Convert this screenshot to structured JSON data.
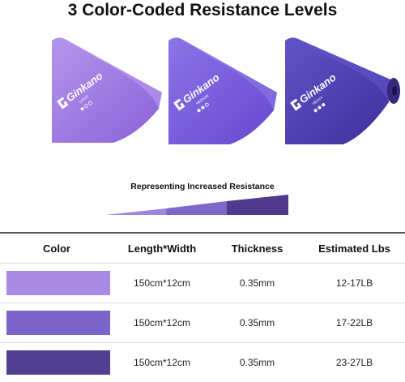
{
  "title": "3 Color-Coded Resistance Levels",
  "subtitle": "Representing Increased Resistance",
  "brand": "Ginkano",
  "bands": [
    {
      "level": "LIGHT",
      "color": "#9b6fe0"
    },
    {
      "level": "MEDIUM",
      "color": "#7658dc"
    },
    {
      "level": "HEAVY",
      "color": "#4a3cb0"
    }
  ],
  "wedge_colors": [
    "#a084dc",
    "#8066c8",
    "#4f3a8e"
  ],
  "table": {
    "headers": [
      "Color",
      "Length*Width",
      "Thickness",
      "Estimated Lbs"
    ],
    "rows": [
      {
        "swatch": "#a68ae4",
        "length_width": "150cm*12cm",
        "thickness": "0.35mm",
        "lbs": "12-17LB"
      },
      {
        "swatch": "#7a63c9",
        "length_width": "150cm*12cm",
        "thickness": "0.35mm",
        "lbs": "17-22LB"
      },
      {
        "swatch": "#51408f",
        "length_width": "150cm*12cm",
        "thickness": "0.35mm",
        "lbs": "23-27LB"
      }
    ]
  }
}
